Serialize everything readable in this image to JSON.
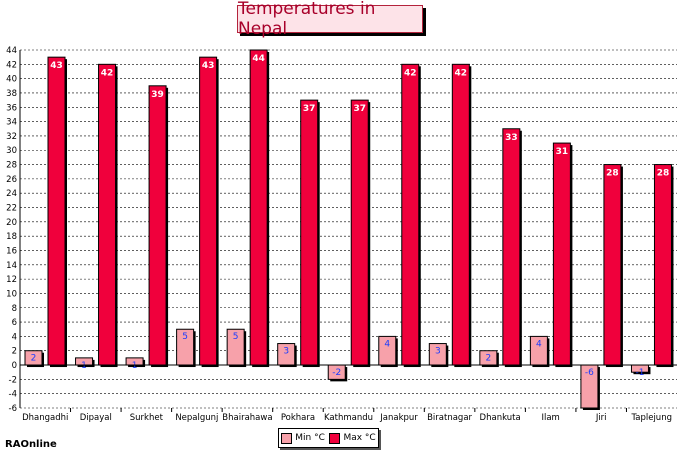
{
  "chart_data": {
    "type": "bar",
    "title": "Temperatures in Nepal",
    "categories": [
      "Dhangadhi",
      "Dipayal",
      "Surkhet",
      "Nepalgunj",
      "Bhairahawa",
      "Pokhara",
      "Kathmandu",
      "Janakpur",
      "Biratnagar",
      "Dhankuta",
      "Ilam",
      "Jiri",
      "Taplejung"
    ],
    "series": [
      {
        "name": "Min °C",
        "color": "#f7a1aa",
        "values": [
          2,
          1,
          1,
          5,
          5,
          3,
          -2,
          4,
          3,
          2,
          4,
          -6,
          -1
        ],
        "labels": [
          "2",
          "1",
          "1",
          "5",
          "5",
          "3",
          "-2",
          "4",
          "3",
          "2",
          "4",
          "-6",
          "-1"
        ]
      },
      {
        "name": "Max °C",
        "color": "#f0003c",
        "values": [
          43,
          42,
          39,
          43,
          44,
          37,
          37,
          42,
          42,
          33,
          31,
          28,
          28
        ],
        "labels": [
          "43",
          "42",
          "39",
          "43",
          "44",
          "37",
          "37",
          "42",
          "42",
          "33",
          "31",
          "28",
          "28"
        ]
      }
    ],
    "ylim": [
      -6,
      44
    ],
    "yticks": [
      44,
      42,
      40,
      38,
      36,
      34,
      32,
      30,
      28,
      26,
      24,
      22,
      20,
      18,
      16,
      14,
      12,
      10,
      8,
      6,
      4,
      2,
      0,
      -2,
      -4,
      -6
    ],
    "grid": true,
    "legend": "bottom-center",
    "xlabel": "",
    "ylabel": ""
  },
  "watermark": "RAOnline"
}
